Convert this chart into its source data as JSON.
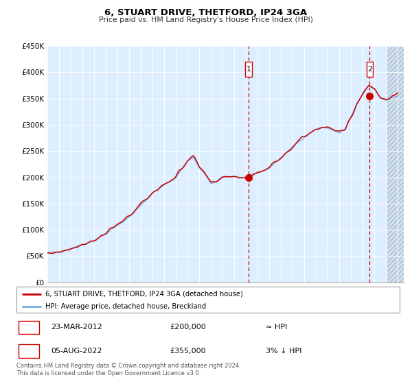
{
  "title": "6, STUART DRIVE, THETFORD, IP24 3GA",
  "subtitle": "Price paid vs. HM Land Registry's House Price Index (HPI)",
  "legend_line1": "6, STUART DRIVE, THETFORD, IP24 3GA (detached house)",
  "legend_line2": "HPI: Average price, detached house, Breckland",
  "annotation1_label": "1",
  "annotation1_date": "23-MAR-2012",
  "annotation1_price": "£200,000",
  "annotation1_hpi": "≈ HPI",
  "annotation2_label": "2",
  "annotation2_date": "05-AUG-2022",
  "annotation2_price": "£355,000",
  "annotation2_hpi": "3% ↓ HPI",
  "footer": "Contains HM Land Registry data © Crown copyright and database right 2024.\nThis data is licensed under the Open Government Licence v3.0.",
  "hpi_color": "#7aaadd",
  "price_color": "#cc0000",
  "marker_color": "#cc0000",
  "vline_color": "#cc0000",
  "bg_color": "#ddeeff",
  "grid_color": "#ffffff",
  "ylim": [
    0,
    450000
  ],
  "yticks": [
    0,
    50000,
    100000,
    150000,
    200000,
    250000,
    300000,
    350000,
    400000,
    450000
  ],
  "sale1_year": 2012.22,
  "sale1_value": 200000,
  "sale2_year": 2022.58,
  "sale2_value": 355000,
  "xmin": 1995,
  "xmax": 2025.5,
  "hatch_start": 2024.08
}
